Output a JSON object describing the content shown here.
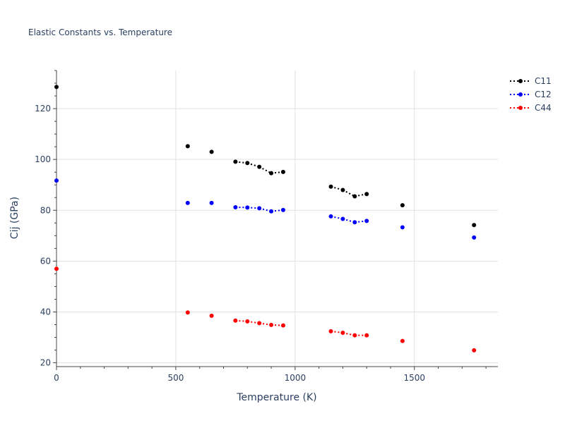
{
  "chart_data": {
    "type": "scatter",
    "title": "Elastic Constants vs. Temperature",
    "xlabel": "Temperature (K)",
    "ylabel": "Cij (GPa)",
    "xlim": [
      0,
      1850
    ],
    "ylim": [
      18.5,
      135
    ],
    "x_ticks": [
      0,
      500,
      1000,
      1500
    ],
    "y_ticks": [
      20,
      40,
      60,
      80,
      100,
      120
    ],
    "grid": true,
    "legend_position": "top-right",
    "series": [
      {
        "name": "C11",
        "color": "#000000",
        "x": [
          0,
          550,
          650,
          750,
          800,
          850,
          900,
          950,
          1150,
          1200,
          1250,
          1300,
          1450,
          1750
        ],
        "y": [
          128.5,
          105.2,
          103.0,
          99.1,
          98.6,
          97.1,
          94.6,
          95.1,
          89.3,
          88.0,
          85.5,
          86.4,
          82.0,
          74.2
        ]
      },
      {
        "name": "C12",
        "color": "#0000ff",
        "x": [
          0,
          550,
          650,
          750,
          800,
          850,
          900,
          950,
          1150,
          1200,
          1250,
          1300,
          1450,
          1750
        ],
        "y": [
          91.7,
          82.9,
          82.9,
          81.2,
          81.1,
          80.8,
          79.6,
          80.1,
          77.6,
          76.6,
          75.3,
          75.8,
          73.3,
          69.3
        ]
      },
      {
        "name": "C44",
        "color": "#ff0000",
        "x": [
          0,
          550,
          650,
          750,
          800,
          850,
          900,
          950,
          1150,
          1200,
          1250,
          1300,
          1450,
          1750
        ],
        "y": [
          57.0,
          39.8,
          38.5,
          36.6,
          36.3,
          35.6,
          34.9,
          34.7,
          32.4,
          31.8,
          30.8,
          30.8,
          28.6,
          24.9
        ]
      }
    ]
  }
}
